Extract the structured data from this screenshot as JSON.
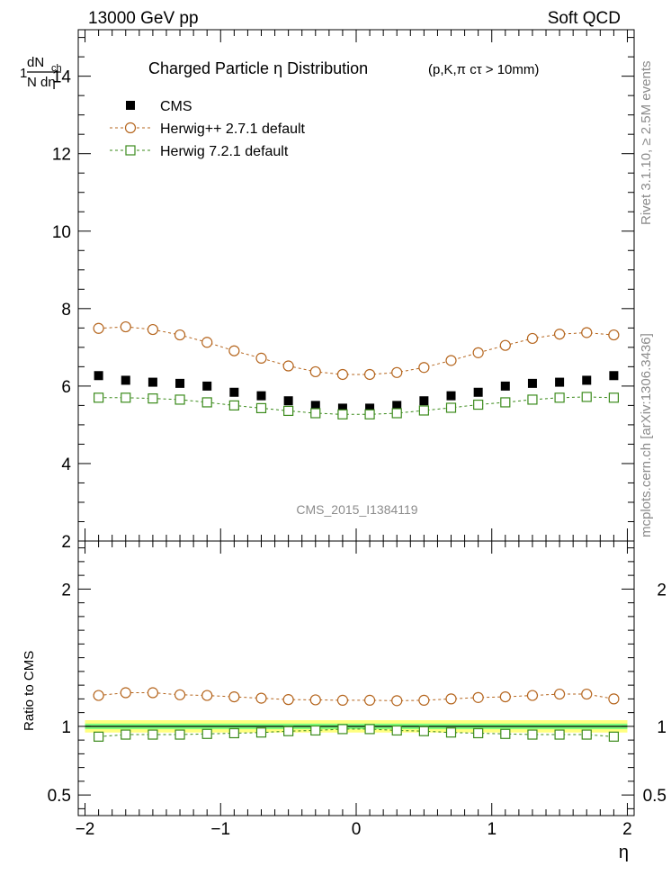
{
  "header": {
    "left": "13000 GeV pp",
    "right": "Soft QCD"
  },
  "side_labels": {
    "rivet": "Rivet 3.1.10, ≥ 2.5M events",
    "mcplots": "mcplots.cern.ch [arXiv:1306.3436]"
  },
  "watermark": "CMS_2015_I1384119",
  "axis_labels": {
    "y_main_num": "1",
    "y_main_num_d": "dN",
    "y_main_num_sub": "ch",
    "y_main_den": "N dη",
    "y_ratio": "Ratio to CMS",
    "x": "η"
  },
  "colors": {
    "cms": "#000000",
    "herwigpp": "#b5651d",
    "herwig7": "#3a8a1a",
    "band_inner": "#7cfc7c",
    "band_outer": "#ffff80"
  },
  "chart_data": [
    {
      "type": "scatter",
      "title": "Charged Particle  η Distribution",
      "title_suffix": "(p,K,π cτ > 10mm)",
      "xlabel": "η",
      "ylabel": "1/N dN_ch/dη",
      "xlim": [
        -2.05,
        2.05
      ],
      "ylim": [
        2,
        15.2
      ],
      "y_ticks": [
        2,
        4,
        6,
        8,
        10,
        12,
        14
      ],
      "grid": false,
      "legend_position": "top-left",
      "x": [
        -1.9,
        -1.7,
        -1.5,
        -1.3,
        -1.1,
        -0.9,
        -0.7,
        -0.5,
        -0.3,
        -0.1,
        0.1,
        0.3,
        0.5,
        0.7,
        0.9,
        1.1,
        1.3,
        1.5,
        1.7,
        1.9
      ],
      "series": [
        {
          "name": "CMS",
          "style": "filled-square",
          "values": [
            6.27,
            6.15,
            6.1,
            6.07,
            6.0,
            5.84,
            5.75,
            5.62,
            5.5,
            5.43,
            5.43,
            5.5,
            5.62,
            5.75,
            5.84,
            6.0,
            6.07,
            6.1,
            6.15,
            6.27
          ]
        },
        {
          "name": "Herwig++ 2.7.1 default",
          "style": "open-circle-dashed",
          "values": [
            7.49,
            7.53,
            7.46,
            7.32,
            7.13,
            6.91,
            6.72,
            6.52,
            6.37,
            6.3,
            6.3,
            6.35,
            6.48,
            6.66,
            6.86,
            7.05,
            7.23,
            7.34,
            7.38,
            7.32
          ]
        },
        {
          "name": "Herwig 7.2.1 default",
          "style": "open-square-dashed",
          "values": [
            5.7,
            5.7,
            5.68,
            5.65,
            5.58,
            5.5,
            5.43,
            5.36,
            5.3,
            5.27,
            5.27,
            5.3,
            5.37,
            5.44,
            5.52,
            5.58,
            5.65,
            5.7,
            5.72,
            5.7
          ]
        }
      ]
    },
    {
      "type": "scatter",
      "ylabel": "Ratio to CMS",
      "xlabel": "η",
      "xlim": [
        -2.05,
        2.05
      ],
      "ylim": [
        0.35,
        2.35
      ],
      "y_ticks": [
        0.5,
        1,
        2
      ],
      "x_ticks": [
        -2,
        -1,
        0,
        1,
        2
      ],
      "x_tick_labels": [
        "−2",
        "−1",
        "0",
        "1",
        "2"
      ],
      "band": {
        "inner": 0.02,
        "outer": 0.045
      },
      "x": [
        -1.9,
        -1.7,
        -1.5,
        -1.3,
        -1.1,
        -0.9,
        -0.7,
        -0.5,
        -0.3,
        -0.1,
        0.1,
        0.3,
        0.5,
        0.7,
        0.9,
        1.1,
        1.3,
        1.5,
        1.7,
        1.9
      ],
      "series": [
        {
          "name": "Herwig++ 2.7.1 default",
          "style": "open-circle-dashed",
          "values": [
            1.225,
            1.245,
            1.245,
            1.23,
            1.225,
            1.215,
            1.205,
            1.195,
            1.193,
            1.19,
            1.19,
            1.187,
            1.19,
            1.2,
            1.21,
            1.215,
            1.225,
            1.235,
            1.235,
            1.2
          ]
        },
        {
          "name": "Herwig 7.2.1 default",
          "style": "open-square-dashed",
          "values": [
            0.925,
            0.94,
            0.94,
            0.94,
            0.945,
            0.95,
            0.955,
            0.965,
            0.97,
            0.98,
            0.98,
            0.97,
            0.965,
            0.955,
            0.95,
            0.945,
            0.94,
            0.94,
            0.94,
            0.925
          ]
        }
      ]
    }
  ]
}
